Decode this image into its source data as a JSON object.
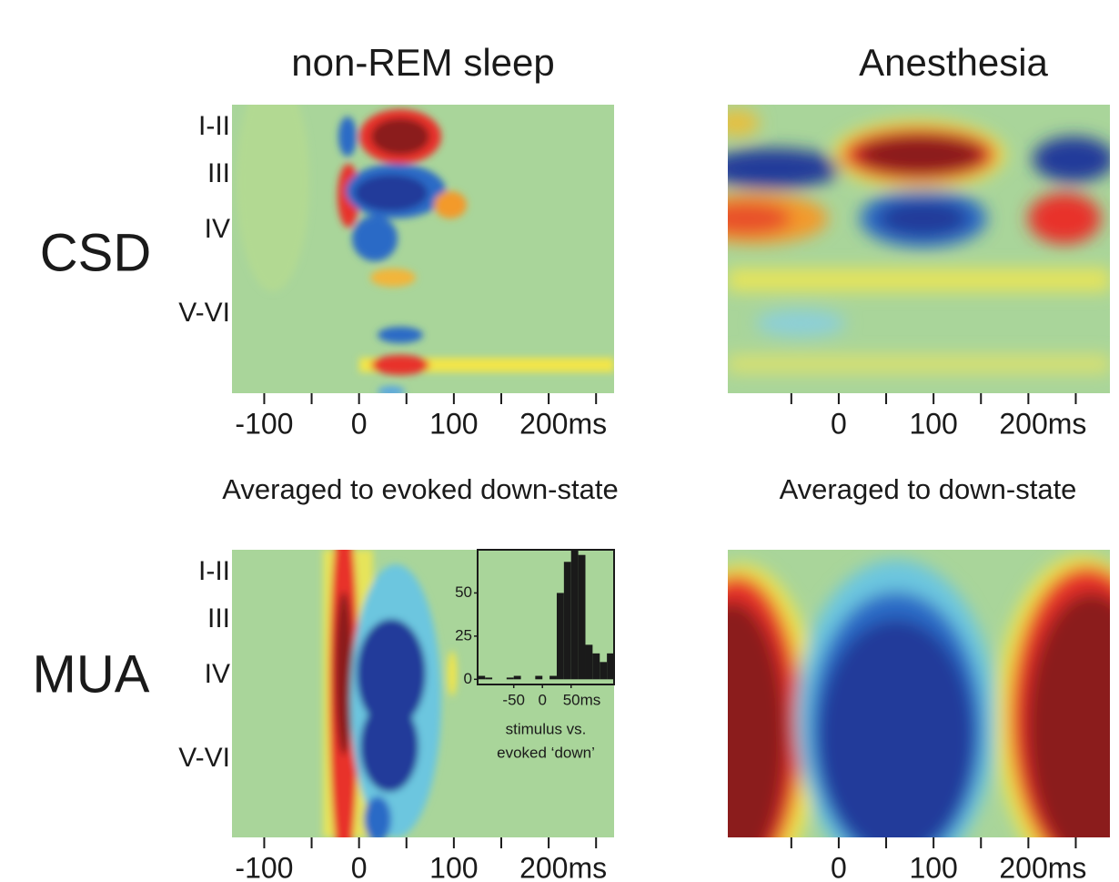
{
  "column_titles": [
    "non-REM sleep",
    "Anesthesia"
  ],
  "row_titles": [
    "CSD",
    "MUA"
  ],
  "subtitles": [
    "Averaged to evoked down-state",
    "Averaged to down-state"
  ],
  "chart_data": [
    {
      "type": "heatmap",
      "xlim": [
        -134,
        269
      ],
      "xticks": [
        -100,
        0,
        100,
        {
          "value": 200,
          "label": "200ms"
        }
      ],
      "xminorticks": [
        -50,
        50,
        150,
        250
      ],
      "layers": [
        "I-II",
        "III",
        "IV",
        "V-VI"
      ]
    },
    {
      "type": "heatmap",
      "xlim": [
        -117,
        286
      ],
      "xticks": [
        0,
        100,
        {
          "value": 200,
          "label": "200ms"
        }
      ],
      "xminorticks": [
        -50,
        50,
        150,
        250
      ]
    },
    {
      "type": "heatmap",
      "xlim": [
        -134,
        269
      ],
      "xticks": [
        -100,
        0,
        100,
        {
          "value": 200,
          "label": "200ms"
        }
      ],
      "xminorticks": [
        -50,
        50,
        150,
        250
      ],
      "layers": [
        "I-II",
        "III",
        "IV",
        "V-VI"
      ]
    },
    {
      "type": "heatmap",
      "xlim": [
        -117,
        286
      ],
      "xticks": [
        0,
        100,
        {
          "value": 200,
          "label": "200ms"
        }
      ],
      "xminorticks": [
        -50,
        50,
        150,
        250
      ]
    },
    {
      "type": "histogram",
      "color": "#1a1a1a",
      "bins": [
        -112.5,
        -100,
        -87.5,
        -75,
        -62.5,
        -50,
        -37.5,
        -25,
        -12.5,
        0,
        12.5,
        25,
        37.5,
        50,
        62.5,
        75,
        87.5,
        100,
        112.5,
        125
      ],
      "values": [
        2,
        1,
        0,
        0,
        1,
        2,
        0,
        0,
        2,
        0,
        2,
        50,
        68,
        75,
        72,
        20,
        15,
        10,
        15
      ],
      "xlim": [
        -113,
        125
      ],
      "xticks": [
        -50,
        0,
        {
          "value": 50,
          "label": "50ms"
        }
      ],
      "ylim": [
        -3,
        75
      ],
      "yticks": [
        0,
        25,
        50
      ],
      "xlabel": [
        "stimulus vs.",
        "evoked ‘down’"
      ]
    }
  ]
}
